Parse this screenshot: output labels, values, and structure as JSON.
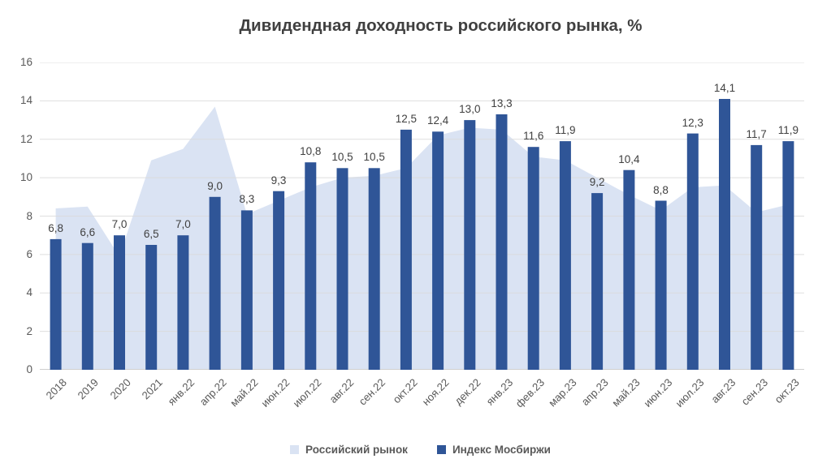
{
  "chart_data": {
    "type": "combo",
    "title": "Дивидендная доходность российского рынка, %",
    "categories": [
      "2018",
      "2019",
      "2020",
      "2021",
      "янв.22",
      "апр.22",
      "май.22",
      "июн.22",
      "июл.22",
      "авг.22",
      "сен.22",
      "окт.22",
      "ноя.22",
      "дек.22",
      "янв.23",
      "фев.23",
      "мар.23",
      "апр.23",
      "май.23",
      "июн.23",
      "июл.23",
      "авг.23",
      "сен.23",
      "окт.23"
    ],
    "series": [
      {
        "name": "Российский рынок",
        "chart_type": "area",
        "color": "#DAE3F3",
        "values": [
          8.4,
          8.5,
          5.9,
          10.9,
          11.5,
          13.7,
          8.1,
          8.8,
          9.5,
          10.0,
          10.1,
          10.5,
          12.2,
          12.6,
          12.5,
          11.1,
          10.9,
          10.0,
          9.1,
          8.3,
          9.5,
          9.6,
          8.2,
          8.6
        ]
      },
      {
        "name": "Индекс Мосбиржи",
        "chart_type": "bar",
        "color": "#2F5597",
        "values": [
          6.8,
          6.6,
          7.0,
          6.5,
          7.0,
          9.0,
          8.3,
          9.3,
          10.8,
          10.5,
          10.5,
          12.5,
          12.4,
          13.0,
          13.3,
          11.6,
          11.9,
          9.2,
          10.4,
          8.8,
          12.3,
          14.1,
          11.7,
          11.9
        ],
        "data_labels": [
          "6,8",
          "6,6",
          "7,0",
          "6,5",
          "7,0",
          "9,0",
          "8,3",
          "9,3",
          "10,8",
          "10,5",
          "10,5",
          "12,5",
          "12,4",
          "13,0",
          "13,3",
          "11,6",
          "11,9",
          "9,2",
          "10,4",
          "8,8",
          "12,3",
          "14,1",
          "11,7",
          "11,9"
        ]
      }
    ],
    "y_axis": {
      "min": 0,
      "max": 16,
      "step": 2,
      "tick_labels": [
        "16",
        "14",
        "12",
        "10",
        "8",
        "6",
        "4",
        "2",
        "0"
      ]
    },
    "x_axis": {
      "label_rotation_deg": -45
    },
    "legend": {
      "position": "bottom",
      "entries": [
        "Российский рынок",
        "Индекс Мосбиржи"
      ]
    },
    "grid": true,
    "colors": {
      "title": "#404040",
      "data_label": "#404040",
      "axis_label": "#595959",
      "gridline": "#D9D9D9",
      "baseline": "#CFCFCF",
      "legend_text": "#595959",
      "background": "#FFFFFF"
    }
  }
}
